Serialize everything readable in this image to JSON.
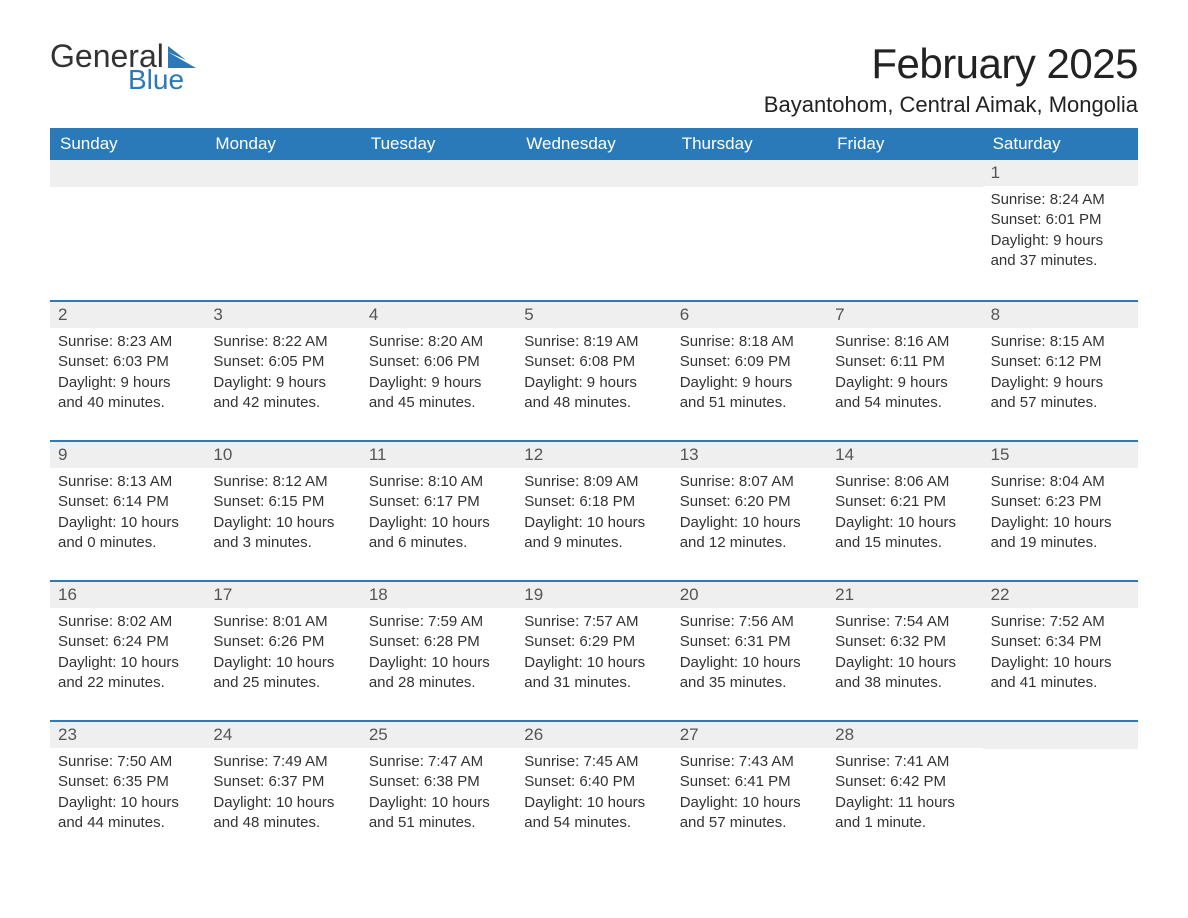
{
  "logo": {
    "text1": "General",
    "text2": "Blue",
    "flag_color": "#2a7ab9"
  },
  "header": {
    "title": "February 2025",
    "location": "Bayantohom, Central Aimak, Mongolia"
  },
  "colors": {
    "header_bg": "#2a7ab9",
    "row_sep": "#2a7ab9",
    "daynum_bg": "#efefef",
    "text": "#333333",
    "page_bg": "#ffffff"
  },
  "weekdays": [
    "Sunday",
    "Monday",
    "Tuesday",
    "Wednesday",
    "Thursday",
    "Friday",
    "Saturday"
  ],
  "weeks": [
    [
      null,
      null,
      null,
      null,
      null,
      null,
      {
        "n": "1",
        "sr": "Sunrise: 8:24 AM",
        "ss": "Sunset: 6:01 PM",
        "dl": "Daylight: 9 hours and 37 minutes."
      }
    ],
    [
      {
        "n": "2",
        "sr": "Sunrise: 8:23 AM",
        "ss": "Sunset: 6:03 PM",
        "dl": "Daylight: 9 hours and 40 minutes."
      },
      {
        "n": "3",
        "sr": "Sunrise: 8:22 AM",
        "ss": "Sunset: 6:05 PM",
        "dl": "Daylight: 9 hours and 42 minutes."
      },
      {
        "n": "4",
        "sr": "Sunrise: 8:20 AM",
        "ss": "Sunset: 6:06 PM",
        "dl": "Daylight: 9 hours and 45 minutes."
      },
      {
        "n": "5",
        "sr": "Sunrise: 8:19 AM",
        "ss": "Sunset: 6:08 PM",
        "dl": "Daylight: 9 hours and 48 minutes."
      },
      {
        "n": "6",
        "sr": "Sunrise: 8:18 AM",
        "ss": "Sunset: 6:09 PM",
        "dl": "Daylight: 9 hours and 51 minutes."
      },
      {
        "n": "7",
        "sr": "Sunrise: 8:16 AM",
        "ss": "Sunset: 6:11 PM",
        "dl": "Daylight: 9 hours and 54 minutes."
      },
      {
        "n": "8",
        "sr": "Sunrise: 8:15 AM",
        "ss": "Sunset: 6:12 PM",
        "dl": "Daylight: 9 hours and 57 minutes."
      }
    ],
    [
      {
        "n": "9",
        "sr": "Sunrise: 8:13 AM",
        "ss": "Sunset: 6:14 PM",
        "dl": "Daylight: 10 hours and 0 minutes."
      },
      {
        "n": "10",
        "sr": "Sunrise: 8:12 AM",
        "ss": "Sunset: 6:15 PM",
        "dl": "Daylight: 10 hours and 3 minutes."
      },
      {
        "n": "11",
        "sr": "Sunrise: 8:10 AM",
        "ss": "Sunset: 6:17 PM",
        "dl": "Daylight: 10 hours and 6 minutes."
      },
      {
        "n": "12",
        "sr": "Sunrise: 8:09 AM",
        "ss": "Sunset: 6:18 PM",
        "dl": "Daylight: 10 hours and 9 minutes."
      },
      {
        "n": "13",
        "sr": "Sunrise: 8:07 AM",
        "ss": "Sunset: 6:20 PM",
        "dl": "Daylight: 10 hours and 12 minutes."
      },
      {
        "n": "14",
        "sr": "Sunrise: 8:06 AM",
        "ss": "Sunset: 6:21 PM",
        "dl": "Daylight: 10 hours and 15 minutes."
      },
      {
        "n": "15",
        "sr": "Sunrise: 8:04 AM",
        "ss": "Sunset: 6:23 PM",
        "dl": "Daylight: 10 hours and 19 minutes."
      }
    ],
    [
      {
        "n": "16",
        "sr": "Sunrise: 8:02 AM",
        "ss": "Sunset: 6:24 PM",
        "dl": "Daylight: 10 hours and 22 minutes."
      },
      {
        "n": "17",
        "sr": "Sunrise: 8:01 AM",
        "ss": "Sunset: 6:26 PM",
        "dl": "Daylight: 10 hours and 25 minutes."
      },
      {
        "n": "18",
        "sr": "Sunrise: 7:59 AM",
        "ss": "Sunset: 6:28 PM",
        "dl": "Daylight: 10 hours and 28 minutes."
      },
      {
        "n": "19",
        "sr": "Sunrise: 7:57 AM",
        "ss": "Sunset: 6:29 PM",
        "dl": "Daylight: 10 hours and 31 minutes."
      },
      {
        "n": "20",
        "sr": "Sunrise: 7:56 AM",
        "ss": "Sunset: 6:31 PM",
        "dl": "Daylight: 10 hours and 35 minutes."
      },
      {
        "n": "21",
        "sr": "Sunrise: 7:54 AM",
        "ss": "Sunset: 6:32 PM",
        "dl": "Daylight: 10 hours and 38 minutes."
      },
      {
        "n": "22",
        "sr": "Sunrise: 7:52 AM",
        "ss": "Sunset: 6:34 PM",
        "dl": "Daylight: 10 hours and 41 minutes."
      }
    ],
    [
      {
        "n": "23",
        "sr": "Sunrise: 7:50 AM",
        "ss": "Sunset: 6:35 PM",
        "dl": "Daylight: 10 hours and 44 minutes."
      },
      {
        "n": "24",
        "sr": "Sunrise: 7:49 AM",
        "ss": "Sunset: 6:37 PM",
        "dl": "Daylight: 10 hours and 48 minutes."
      },
      {
        "n": "25",
        "sr": "Sunrise: 7:47 AM",
        "ss": "Sunset: 6:38 PM",
        "dl": "Daylight: 10 hours and 51 minutes."
      },
      {
        "n": "26",
        "sr": "Sunrise: 7:45 AM",
        "ss": "Sunset: 6:40 PM",
        "dl": "Daylight: 10 hours and 54 minutes."
      },
      {
        "n": "27",
        "sr": "Sunrise: 7:43 AM",
        "ss": "Sunset: 6:41 PM",
        "dl": "Daylight: 10 hours and 57 minutes."
      },
      {
        "n": "28",
        "sr": "Sunrise: 7:41 AM",
        "ss": "Sunset: 6:42 PM",
        "dl": "Daylight: 11 hours and 1 minute."
      },
      null
    ]
  ]
}
